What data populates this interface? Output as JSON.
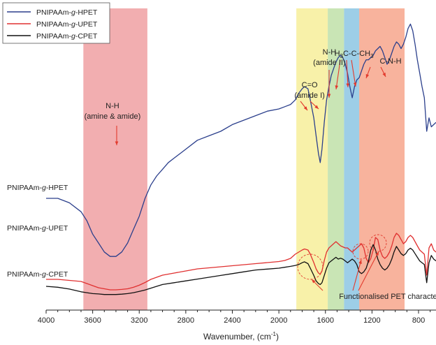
{
  "chart_data": {
    "type": "line",
    "title": "",
    "xlabel": "Wavenumber, (cm",
    "xlabel_sup": "-1",
    "xlabel_suffix": ")",
    "ylabel": "",
    "xlim": [
      4000,
      650
    ],
    "x_reversed": true,
    "xticks": [
      4000,
      3600,
      3200,
      2800,
      2400,
      2000,
      1600,
      1200,
      800
    ],
    "grid": false,
    "legend_position": "top-left",
    "legend": [
      {
        "pre": "PNIPAAm-",
        "italic": "g",
        "post": "-HPET",
        "color": "#2b3f8c"
      },
      {
        "pre": "PNIPAAm-",
        "italic": "g",
        "post": "-UPET",
        "color": "#e03030"
      },
      {
        "pre": "PNIPAAm-",
        "italic": "g",
        "post": "-CPET",
        "color": "#111111"
      }
    ],
    "bands": [
      {
        "from": 3680,
        "to": 3130,
        "color": "#f0a0a2"
      },
      {
        "from": 1850,
        "to": 1580,
        "color": "#f7ef9a"
      },
      {
        "from": 1580,
        "to": 1440,
        "color": "#bfe0a8"
      },
      {
        "from": 1440,
        "to": 1310,
        "color": "#8cc6e3"
      },
      {
        "from": 1310,
        "to": 920,
        "color": "#f7a68c"
      }
    ],
    "series": [
      {
        "pre": "PNIPAAm-",
        "italic": "g",
        "post": "-HPET",
        "color": "#2b3f8c",
        "offset": 0,
        "x": [
          4000,
          3900,
          3800,
          3700,
          3650,
          3600,
          3550,
          3500,
          3450,
          3400,
          3350,
          3300,
          3250,
          3200,
          3150,
          3100,
          3050,
          3000,
          2950,
          2900,
          2850,
          2800,
          2700,
          2600,
          2500,
          2400,
          2300,
          2200,
          2100,
          2000,
          1950,
          1900,
          1860,
          1830,
          1800,
          1780,
          1750,
          1730,
          1700,
          1680,
          1660,
          1645,
          1630,
          1610,
          1590,
          1570,
          1550,
          1530,
          1510,
          1490,
          1470,
          1450,
          1430,
          1410,
          1390,
          1370,
          1350,
          1330,
          1310,
          1290,
          1270,
          1250,
          1230,
          1210,
          1190,
          1170,
          1150,
          1130,
          1110,
          1090,
          1070,
          1050,
          1030,
          1010,
          990,
          970,
          950,
          930,
          910,
          890,
          870,
          850,
          830,
          810,
          790,
          770,
          750,
          730,
          710,
          690,
          670,
          650
        ],
        "y": [
          0.3,
          0.3,
          0.28,
          0.24,
          0.2,
          0.14,
          0.1,
          0.06,
          0.04,
          0.04,
          0.06,
          0.1,
          0.16,
          0.22,
          0.3,
          0.36,
          0.4,
          0.43,
          0.46,
          0.48,
          0.5,
          0.52,
          0.56,
          0.58,
          0.6,
          0.63,
          0.65,
          0.67,
          0.69,
          0.7,
          0.71,
          0.72,
          0.74,
          0.77,
          0.79,
          0.8,
          0.79,
          0.74,
          0.66,
          0.58,
          0.5,
          0.46,
          0.52,
          0.64,
          0.74,
          0.8,
          0.85,
          0.88,
          0.91,
          0.93,
          0.94,
          0.93,
          0.9,
          0.86,
          0.8,
          0.75,
          0.8,
          0.83,
          0.84,
          0.87,
          0.9,
          0.92,
          0.92,
          0.93,
          0.94,
          0.96,
          0.97,
          0.98,
          0.96,
          0.93,
          0.9,
          0.92,
          0.95,
          0.98,
          1.0,
          0.99,
          0.97,
          0.99,
          1.02,
          1.06,
          1.08,
          1.05,
          0.99,
          0.92,
          0.86,
          0.8,
          0.75,
          0.6,
          0.66,
          0.62,
          0.63,
          0.64
        ]
      },
      {
        "pre": "PNIPAAm-",
        "italic": "g",
        "post": "-UPET",
        "color": "#e03030",
        "offset": 0,
        "x": [
          4000,
          3900,
          3800,
          3700,
          3650,
          3600,
          3550,
          3500,
          3450,
          3400,
          3350,
          3300,
          3250,
          3200,
          3150,
          3100,
          3050,
          3000,
          2900,
          2800,
          2700,
          2600,
          2500,
          2400,
          2300,
          2200,
          2100,
          2000,
          1950,
          1900,
          1860,
          1830,
          1800,
          1780,
          1750,
          1730,
          1700,
          1680,
          1660,
          1645,
          1630,
          1610,
          1590,
          1570,
          1550,
          1530,
          1510,
          1490,
          1470,
          1450,
          1430,
          1410,
          1390,
          1370,
          1350,
          1330,
          1310,
          1290,
          1270,
          1250,
          1230,
          1210,
          1190,
          1170,
          1150,
          1130,
          1110,
          1090,
          1070,
          1050,
          1030,
          1010,
          990,
          970,
          950,
          930,
          910,
          890,
          870,
          850,
          830,
          810,
          790,
          770,
          750,
          730,
          710,
          690,
          670,
          650
        ],
        "y": [
          0.3,
          0.3,
          0.295,
          0.29,
          0.28,
          0.27,
          0.26,
          0.255,
          0.25,
          0.25,
          0.252,
          0.255,
          0.262,
          0.272,
          0.285,
          0.3,
          0.31,
          0.32,
          0.33,
          0.34,
          0.35,
          0.355,
          0.36,
          0.365,
          0.37,
          0.375,
          0.38,
          0.385,
          0.39,
          0.4,
          0.42,
          0.43,
          0.44,
          0.445,
          0.44,
          0.42,
          0.38,
          0.35,
          0.33,
          0.325,
          0.34,
          0.39,
          0.43,
          0.45,
          0.46,
          0.47,
          0.48,
          0.47,
          0.46,
          0.455,
          0.45,
          0.45,
          0.44,
          0.43,
          0.44,
          0.45,
          0.46,
          0.47,
          0.45,
          0.4,
          0.38,
          0.4,
          0.44,
          0.5,
          0.49,
          0.44,
          0.41,
          0.4,
          0.41,
          0.43,
          0.46,
          0.5,
          0.52,
          0.51,
          0.49,
          0.47,
          0.48,
          0.5,
          0.51,
          0.5,
          0.48,
          0.46,
          0.44,
          0.43,
          0.42,
          0.32,
          0.45,
          0.47,
          0.44,
          0.43
        ]
      },
      {
        "pre": "PNIPAAm-",
        "italic": "g",
        "post": "-CPET",
        "color": "#111111",
        "offset": 0,
        "x": [
          4000,
          3900,
          3800,
          3700,
          3650,
          3600,
          3550,
          3500,
          3450,
          3400,
          3350,
          3300,
          3250,
          3200,
          3150,
          3100,
          3050,
          3000,
          2900,
          2800,
          2700,
          2600,
          2500,
          2400,
          2300,
          2200,
          2100,
          2000,
          1950,
          1900,
          1860,
          1830,
          1800,
          1780,
          1750,
          1730,
          1700,
          1680,
          1660,
          1645,
          1630,
          1610,
          1590,
          1570,
          1550,
          1530,
          1510,
          1490,
          1470,
          1450,
          1430,
          1410,
          1390,
          1370,
          1350,
          1330,
          1310,
          1290,
          1270,
          1250,
          1230,
          1210,
          1190,
          1170,
          1150,
          1130,
          1110,
          1090,
          1070,
          1050,
          1030,
          1010,
          990,
          970,
          950,
          930,
          910,
          890,
          870,
          850,
          830,
          810,
          790,
          770,
          750,
          730,
          710,
          690,
          670,
          650
        ],
        "y": [
          0.1,
          0.095,
          0.085,
          0.07,
          0.065,
          0.06,
          0.058,
          0.055,
          0.055,
          0.055,
          0.057,
          0.06,
          0.065,
          0.072,
          0.08,
          0.09,
          0.1,
          0.11,
          0.12,
          0.13,
          0.14,
          0.15,
          0.16,
          0.17,
          0.18,
          0.19,
          0.195,
          0.2,
          0.205,
          0.21,
          0.215,
          0.22,
          0.23,
          0.235,
          0.225,
          0.2,
          0.16,
          0.13,
          0.115,
          0.11,
          0.12,
          0.16,
          0.2,
          0.23,
          0.24,
          0.25,
          0.26,
          0.25,
          0.255,
          0.25,
          0.24,
          0.23,
          0.24,
          0.25,
          0.24,
          0.22,
          0.18,
          0.17,
          0.18,
          0.2,
          0.24,
          0.3,
          0.33,
          0.3,
          0.25,
          0.22,
          0.2,
          0.19,
          0.2,
          0.22,
          0.25,
          0.29,
          0.32,
          0.3,
          0.28,
          0.27,
          0.28,
          0.3,
          0.31,
          0.3,
          0.28,
          0.26,
          0.24,
          0.23,
          0.22,
          0.12,
          0.23,
          0.27,
          0.25,
          0.24
        ]
      }
    ],
    "annotations": [
      {
        "lines": [
          "N-H",
          "(amine & amide)"
        ],
        "x": 3430,
        "y": 0.92
      },
      {
        "lines": [
          "C=O",
          "(amide I)"
        ],
        "x": 1700,
        "y": 0.98
      },
      {
        "lines": [
          "N-H",
          "(amide II)"
        ],
        "x": 1530,
        "y": 1.12
      },
      {
        "lines": [
          "C-N-H"
        ],
        "x": 1040,
        "y": 1.11
      },
      {
        "lines": [
          "Functionalised PET characteristic"
        ],
        "x": 1330,
        "y": -0.07
      }
    ],
    "formula_label": {
      "parts": [
        "H",
        "3",
        "C-C-CH",
        "3"
      ],
      "x": 1355,
      "y": 1.12
    }
  }
}
